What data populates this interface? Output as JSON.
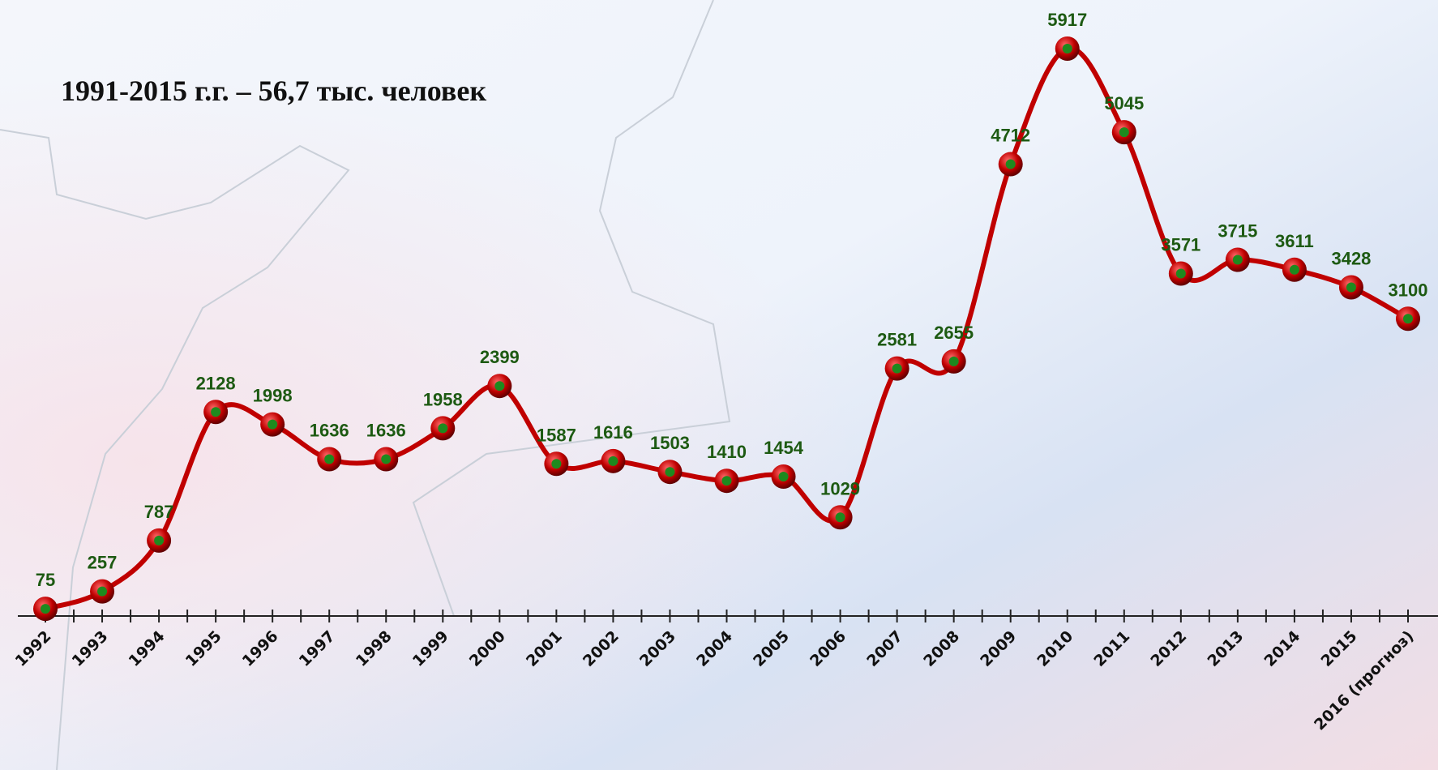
{
  "chart_data": {
    "type": "line",
    "title": "1991-2015 г.г.  – 56,7 тыс. человек",
    "categories": [
      "1992",
      "1993",
      "1994",
      "1995",
      "1996",
      "1997",
      "1998",
      "1999",
      "2000",
      "2001",
      "2002",
      "2003",
      "2004",
      "2005",
      "2006",
      "2007",
      "2008",
      "2009",
      "2010",
      "2011",
      "2012",
      "2013",
      "2014",
      "2015",
      "2016 (прогноз)"
    ],
    "series": [
      {
        "color": "#c00000",
        "marker_color": "#1e8a1e",
        "values": [
          75,
          257,
          787,
          2128,
          1998,
          1636,
          1636,
          1958,
          2399,
          1587,
          1616,
          1503,
          1410,
          1454,
          1029,
          2581,
          2655,
          4712,
          5917,
          5045,
          3571,
          3715,
          3611,
          3428,
          3100
        ]
      }
    ]
  }
}
